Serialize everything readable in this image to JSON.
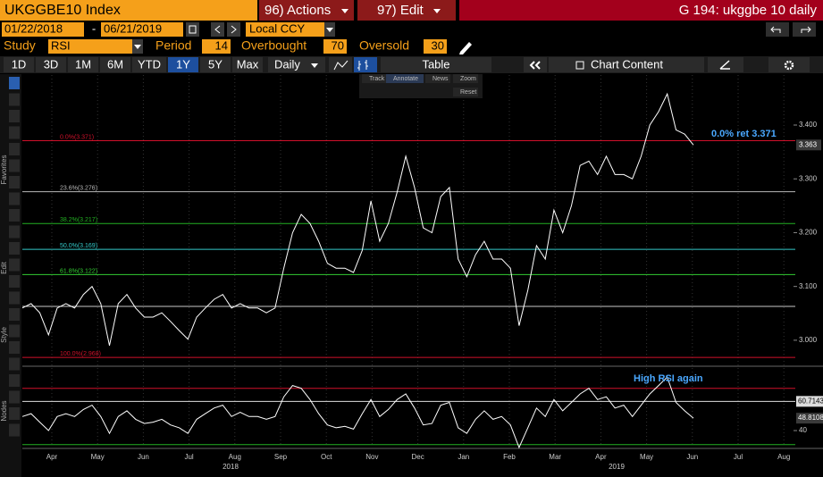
{
  "header": {
    "security": "UKGGBE10 Index",
    "actions": "96) Actions",
    "edit": "97) Edit",
    "page": "G 194: ukggbe 10 daily"
  },
  "dates": {
    "start": "01/22/2018",
    "separator": "-",
    "end": "06/21/2019",
    "currency": "Local CCY"
  },
  "study": {
    "label": "Study",
    "name": "RSI",
    "period_label": "Period",
    "period": 14,
    "overbought_label": "Overbought",
    "overbought": 70,
    "oversold_label": "Oversold",
    "oversold": 30
  },
  "toolbar": {
    "ranges": [
      "1D",
      "3D",
      "1M",
      "6M",
      "YTD",
      "1Y",
      "5Y",
      "Max"
    ],
    "selected_range": "1Y",
    "frequency": "Daily",
    "table": "Table",
    "chart_content": "Chart Content"
  },
  "chart_tools": [
    "Track",
    "Annotate",
    "News",
    "Zoom",
    "Reset"
  ],
  "side_labels": [
    "Favorites",
    "Edit",
    "Style",
    "Nodes"
  ],
  "chart": {
    "price": {
      "type": "line",
      "color": "#ffffff",
      "values": [
        3.06,
        3.068,
        3.051,
        3.01,
        3.06,
        3.068,
        3.06,
        3.085,
        3.1,
        3.068,
        2.99,
        3.068,
        3.085,
        3.06,
        3.043,
        3.043,
        3.051,
        3.035,
        3.018,
        3.002,
        3.043,
        3.06,
        3.076,
        3.085,
        3.06,
        3.068,
        3.06,
        3.06,
        3.051,
        3.06,
        3.134,
        3.2,
        3.234,
        3.217,
        3.184,
        3.143,
        3.134,
        3.134,
        3.126,
        3.167,
        3.259,
        3.184,
        3.217,
        3.275,
        3.342,
        3.284,
        3.209,
        3.2,
        3.267,
        3.284,
        3.151,
        3.118,
        3.159,
        3.184,
        3.151,
        3.151,
        3.134,
        3.027,
        3.093,
        3.176,
        3.151,
        3.242,
        3.2,
        3.25,
        3.325,
        3.333,
        3.308,
        3.342,
        3.308,
        3.308,
        3.3,
        3.342,
        3.4,
        3.425,
        3.458,
        3.391,
        3.383,
        3.363
      ],
      "ylim": [
        2.955,
        3.493
      ],
      "yticks": [
        {
          "value": 3.0,
          "label": "3.000"
        },
        {
          "value": 3.1,
          "label": "3.100"
        },
        {
          "value": 3.2,
          "label": "3.200"
        },
        {
          "value": 3.3,
          "label": "3.300"
        },
        {
          "value": 3.4,
          "label": "3.400"
        }
      ],
      "last_price": 3.363,
      "levels": [
        {
          "label": "0.0%(3.371)",
          "value": 3.371,
          "color": "#d0102a"
        },
        {
          "label": "23.6%(3.276)",
          "value": 3.276,
          "color": "#b8b8b8"
        },
        {
          "label": "38.2%(3.217)",
          "value": 3.217,
          "color": "#22b022"
        },
        {
          "label": "50.0%(3.169)",
          "value": 3.169,
          "color": "#33c8c8"
        },
        {
          "label": "61.8%(3.122)",
          "value": 3.122,
          "color": "#33cc33"
        },
        {
          "label": null,
          "value": 3.063,
          "color": "#c8c8c8"
        },
        {
          "label": "100.0%(2.968)",
          "value": 2.968,
          "color": "#d0102a"
        }
      ],
      "annotation": "0.0% ret 3.371"
    },
    "rsi": {
      "type": "line",
      "color": "#ffffff",
      "values": [
        50,
        52,
        46,
        40,
        50,
        52,
        50,
        55,
        58,
        50,
        38,
        50,
        54,
        48,
        45,
        46,
        48,
        44,
        42,
        38,
        48,
        52,
        56,
        58,
        50,
        53,
        50,
        50,
        48,
        50,
        64,
        72,
        70,
        62,
        52,
        44,
        42,
        43,
        41,
        52,
        62,
        50,
        55,
        62,
        66,
        56,
        44,
        45,
        58,
        60,
        42,
        38,
        48,
        54,
        48,
        50,
        44,
        28,
        42,
        56,
        50,
        62,
        54,
        60,
        66,
        70,
        62,
        64,
        56,
        58,
        50,
        58,
        66,
        72,
        78,
        60,
        54,
        48.8108
      ],
      "ylim": [
        28.6,
        84.4
      ],
      "yticks": [
        40
      ],
      "tags": [
        60.7143,
        48.8108
      ],
      "annotation": "High RSI again"
    },
    "months": [
      "Apr",
      "May",
      "Jun",
      "Jul",
      "Aug",
      "Sep",
      "Oct",
      "Nov",
      "Dec",
      "Jan",
      "Feb",
      "Mar",
      "Apr",
      "May",
      "Jun",
      "Jul",
      "Aug"
    ],
    "years": [
      "2018",
      "2019"
    ]
  }
}
